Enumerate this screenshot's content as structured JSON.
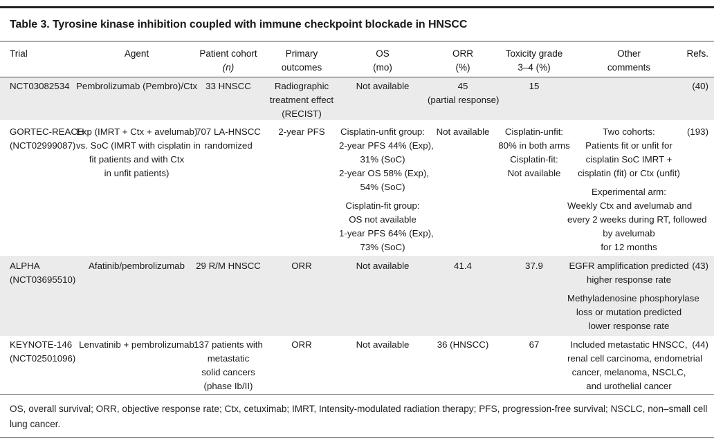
{
  "title": "Table 3. Tyrosine kinase inhibition coupled with immune checkpoint blockade in HNSCC",
  "headers": {
    "trial": "Trial",
    "agent": "Agent",
    "cohort": [
      "Patient cohort",
      "(n)"
    ],
    "primary": [
      "Primary",
      "outcomes"
    ],
    "os": [
      "OS",
      "(mo)"
    ],
    "orr": [
      "ORR",
      "(%)"
    ],
    "tox": [
      "Toxicity grade",
      "3–4 (%)"
    ],
    "other": [
      "Other",
      "comments"
    ],
    "refs": "Refs."
  },
  "rows": [
    {
      "trial": [
        "NCT03082534"
      ],
      "agent": [
        "Pembrolizumab (Pembro)/Ctx"
      ],
      "cohort": [
        "33 HNSCC"
      ],
      "primary": [
        "Radiographic",
        "treatment effect",
        "(RECIST)"
      ],
      "os": [
        "Not available"
      ],
      "orr": [
        "45",
        "(partial response)"
      ],
      "tox": [
        "15"
      ],
      "other": [],
      "other2": [],
      "refs": "(40)"
    },
    {
      "trial": [
        "GORTEC-REACH",
        "(NCT02999087)"
      ],
      "agent": [
        "Exp (IMRT + Ctx + avelumab)",
        "vs. SoC (IMRT with cisplatin in",
        "fit patients and with Ctx",
        "in unfit patients)"
      ],
      "cohort": [
        "707 LA-HNSCC",
        "randomized"
      ],
      "primary": [
        "2-year PFS"
      ],
      "os": [
        "Cisplatin-unfit group:",
        "2-year PFS 44% (Exp),",
        "31% (SoC)",
        "2-year OS 58% (Exp),",
        "54% (SoC)"
      ],
      "os2": [
        "Cisplatin-fit group:",
        "OS not available",
        "1-year PFS 64% (Exp),",
        "73% (SoC)"
      ],
      "orr": [
        "Not available"
      ],
      "tox": [
        "Cisplatin-unfit:",
        "80% in both arms",
        "Cisplatin-fit:",
        "Not available"
      ],
      "other": [
        "Two cohorts:",
        "Patients fit or unfit for",
        "cisplatin SoC IMRT +",
        "cisplatin (fit) or Ctx (unfit)"
      ],
      "other2": [
        "Experimental arm:",
        "Weekly Ctx and avelumab and",
        "every 2 weeks during RT, followed",
        "by avelumab",
        "for 12 months"
      ],
      "refs": "(193)"
    },
    {
      "trial": [
        "ALPHA",
        "(NCT03695510)"
      ],
      "agent": [
        "Afatinib/pembrolizumab"
      ],
      "cohort": [
        "29 R/M HNSCC"
      ],
      "primary": [
        "ORR"
      ],
      "os": [
        "Not available"
      ],
      "orr": [
        "41.4"
      ],
      "tox": [
        "37.9"
      ],
      "other": [
        "EGFR amplification predicted",
        "higher response rate"
      ],
      "other2": [
        "Methyladenosine phosphorylase",
        "loss or mutation predicted",
        "lower response rate"
      ],
      "refs": "(43)"
    },
    {
      "trial": [
        "KEYNOTE-146",
        "(NCT02501096)"
      ],
      "agent": [
        "Lenvatinib + pembrolizumab"
      ],
      "cohort": [
        "137 patients with",
        "metastatic",
        "solid cancers",
        "(phase Ib/II)"
      ],
      "primary": [
        "ORR"
      ],
      "os": [
        "Not available"
      ],
      "orr": [
        "36 (HNSCC)"
      ],
      "tox": [
        "67"
      ],
      "other": [
        "Included metastatic HNSCC,",
        "renal cell carcinoma, endometrial",
        "cancer, melanoma, NSCLC,",
        "and urothelial cancer"
      ],
      "other2": [],
      "refs": "(44)"
    }
  ],
  "footnote": "OS, overall survival; ORR, objective response rate; Ctx, cetuximab; IMRT, Intensity-modulated radiation therapy; PFS, progression-free survival; NSCLC, non–small cell lung cancer."
}
